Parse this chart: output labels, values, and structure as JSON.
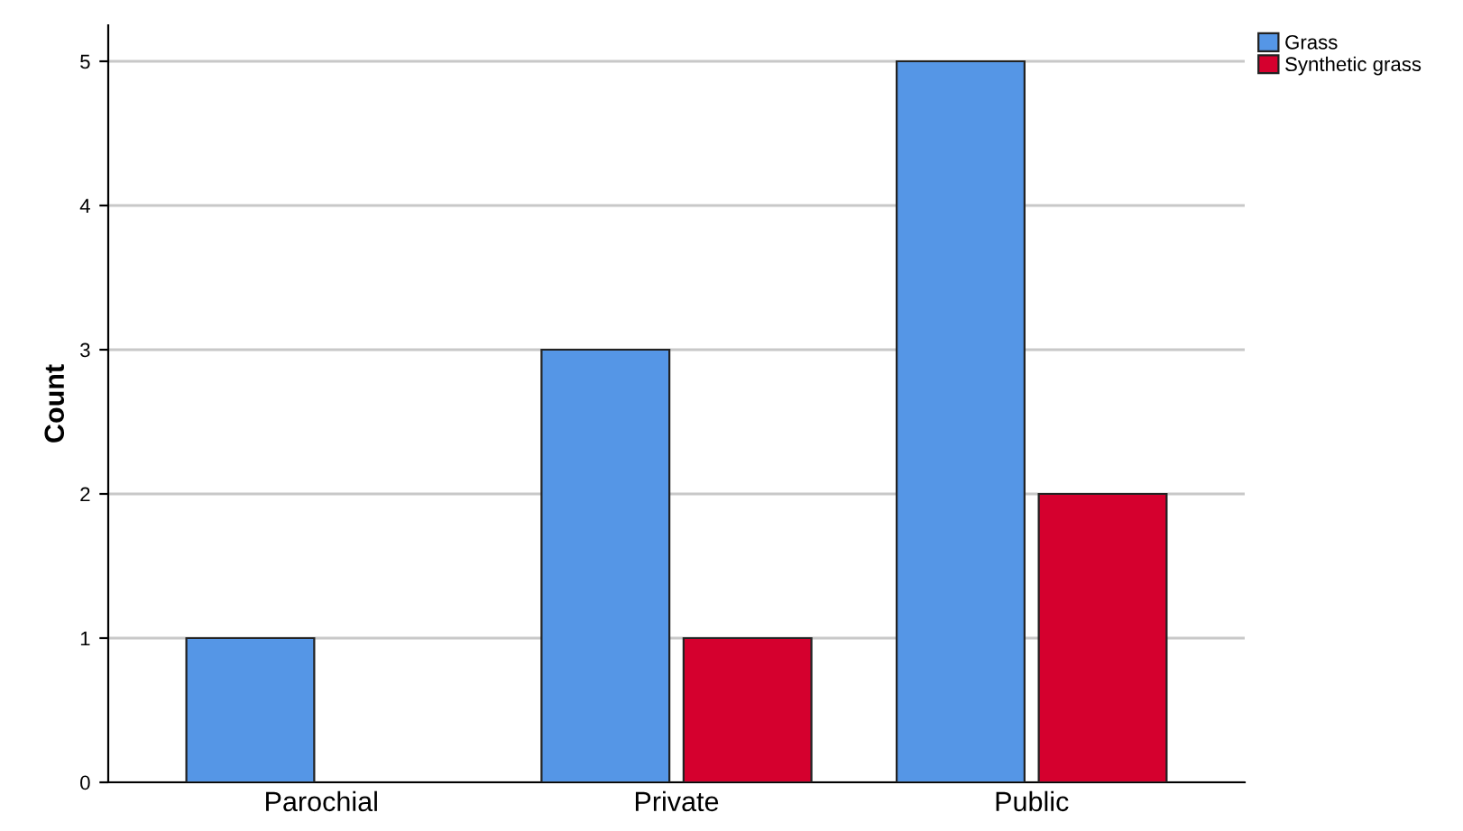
{
  "chart_data": {
    "type": "bar",
    "ylabel": "Count",
    "categories": [
      "Parochial",
      "Private",
      "Public"
    ],
    "series": [
      {
        "name": "Grass",
        "color": "#5596e6",
        "values": [
          1,
          3,
          5
        ]
      },
      {
        "name": "Synthetic grass",
        "color": "#d5002e",
        "values": [
          null,
          1,
          2
        ]
      }
    ],
    "ylim": [
      0,
      5.25
    ],
    "yticks": [
      0,
      1,
      2,
      3,
      4,
      5
    ],
    "grid": "y",
    "legend": "top right"
  }
}
